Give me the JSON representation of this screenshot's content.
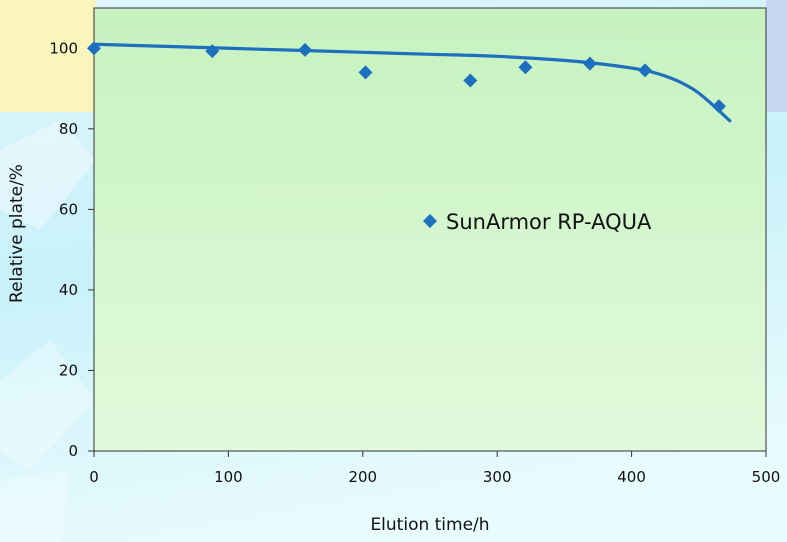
{
  "colors": {
    "plot_area": "#ccf5c4",
    "series": "#1f6fbf",
    "slide_yellow": "#faf5bd",
    "slide_blue": "#c8d7f4",
    "slide_cyan": "#d4f6fb"
  },
  "chart_data": {
    "type": "scatter",
    "title": "",
    "xlabel": "Elution time/h",
    "ylabel": "Relative plate/%",
    "xlim": [
      0,
      500
    ],
    "ylim": [
      0,
      110
    ],
    "xticks": [
      0,
      100,
      200,
      300,
      400,
      500
    ],
    "yticks": [
      0,
      20,
      40,
      60,
      80,
      100
    ],
    "grid": false,
    "legend_position": "center-right",
    "series": [
      {
        "name": "SunArmor RP-AQUA",
        "marker": "diamond",
        "x": [
          0,
          88,
          157,
          202,
          280,
          321,
          369,
          410,
          465
        ],
        "y": [
          100,
          99.3,
          99.6,
          94,
          92,
          95.3,
          96.2,
          94.5,
          85.6
        ]
      }
    ],
    "trendline": {
      "type": "smoothed fit curve",
      "x": [
        0,
        50,
        100,
        150,
        200,
        250,
        300,
        350,
        380,
        410,
        430,
        445,
        455,
        465,
        473
      ],
      "y": [
        101,
        100.5,
        100,
        99.5,
        99,
        98.5,
        98,
        97,
        96,
        94.5,
        92.5,
        90,
        87.5,
        84.5,
        82
      ]
    }
  }
}
